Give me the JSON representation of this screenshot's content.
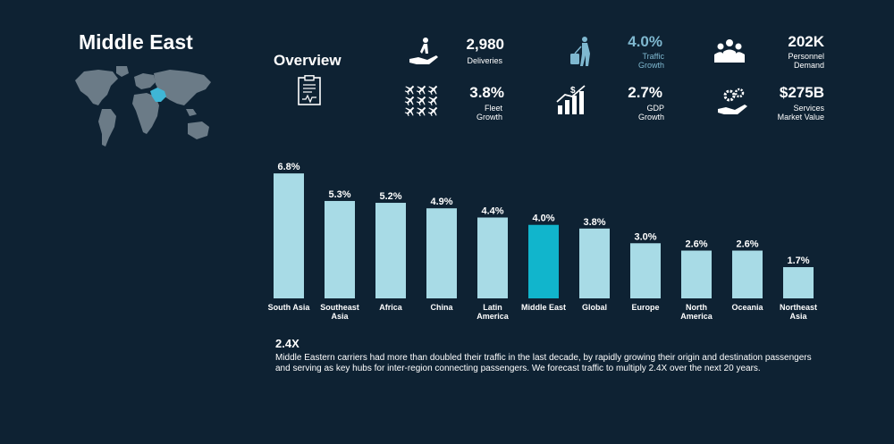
{
  "region": {
    "title": "Middle East"
  },
  "overview": {
    "title": "Overview",
    "stats": [
      {
        "id": "deliveries",
        "value": "2,980",
        "label": [
          "Deliveries"
        ],
        "icon": "delivery-hand-icon",
        "highlight": false
      },
      {
        "id": "traffic-growth",
        "value": "4.0%",
        "label": [
          "Traffic",
          "Growth"
        ],
        "icon": "traveler-luggage-icon",
        "highlight": true
      },
      {
        "id": "personnel-demand",
        "value": "202K",
        "label": [
          "Personnel",
          "Demand"
        ],
        "icon": "people-group-icon",
        "highlight": false
      },
      {
        "id": "fleet-growth",
        "value": "3.8%",
        "label": [
          "Fleet",
          "Growth"
        ],
        "icon": "airplanes-icon",
        "highlight": false
      },
      {
        "id": "gdp-growth",
        "value": "2.7%",
        "label": [
          "GDP",
          "Growth"
        ],
        "icon": "growth-chart-icon",
        "highlight": false
      },
      {
        "id": "services-market-value",
        "value": "$275B",
        "label": [
          "Services",
          "Market Value"
        ],
        "icon": "services-gears-hand-icon",
        "highlight": false
      }
    ]
  },
  "colors": {
    "background": "#0e2233",
    "bar": "#a8dbe6",
    "bar_highlight": "#11b5cc",
    "map_land": "#6b7b87",
    "map_highlight": "#3fb6d6",
    "accent_text": "#7fb8d0"
  },
  "chart_data": {
    "type": "bar",
    "categories": [
      [
        "South Asia"
      ],
      [
        "Southeast",
        "Asia"
      ],
      [
        "Africa"
      ],
      [
        "China"
      ],
      [
        "Latin",
        "America"
      ],
      [
        "Middle East"
      ],
      [
        "Global"
      ],
      [
        "Europe"
      ],
      [
        "North",
        "America"
      ],
      [
        "Oceania"
      ],
      [
        "Northeast",
        "Asia"
      ]
    ],
    "values": [
      6.8,
      5.3,
      5.2,
      4.9,
      4.4,
      4.0,
      3.8,
      3.0,
      2.6,
      2.6,
      1.7
    ],
    "data_labels": [
      "6.8%",
      "5.3%",
      "5.2%",
      "4.9%",
      "4.4%",
      "4.0%",
      "3.8%",
      "3.0%",
      "2.6%",
      "2.6%",
      "1.7%"
    ],
    "highlight_index": 5,
    "ylim": [
      0,
      7.0
    ],
    "grid": false,
    "title": "",
    "xlabel": "",
    "ylabel": ""
  },
  "summary": {
    "headline": "2.4X",
    "text": "Middle Eastern carriers had more than doubled their traffic in the last decade, by rapidly growing their origin and destination passengers and serving as key hubs for inter-region connecting passengers. We forecast traffic to multiply 2.4X over the next 20 years."
  }
}
